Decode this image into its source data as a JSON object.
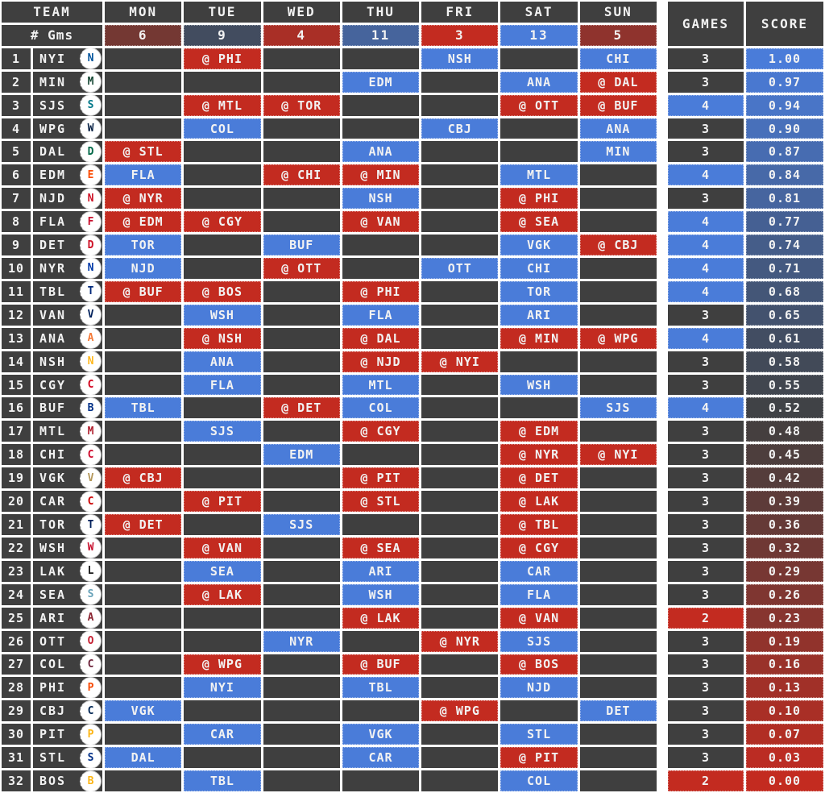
{
  "header": {
    "team_label": "TEAM",
    "gms_label": "# Gms",
    "games_label": "GAMES",
    "score_label": "SCORE",
    "days": [
      {
        "label": "MON",
        "count": 6,
        "count_color": "#743833"
      },
      {
        "label": "TUE",
        "count": 9,
        "count_color": "#424C5F"
      },
      {
        "label": "WED",
        "count": 4,
        "count_color": "#A92F26"
      },
      {
        "label": "THU",
        "count": 11,
        "count_color": "#46649C"
      },
      {
        "label": "FRI",
        "count": 3,
        "count_color": "#C32B20"
      },
      {
        "label": "SAT",
        "count": 13,
        "count_color": "#4A7CD9"
      },
      {
        "label": "SUN",
        "count": 5,
        "count_color": "#8F332D"
      }
    ]
  },
  "colors": {
    "home": "#4A7CD9",
    "away": "#C32B20",
    "cell_bg": "#3F3F3F",
    "text": "#F2F2F2",
    "grid": "#FFFFFF",
    "games_high": "#4A7CD9",
    "games_low": "#C32B20"
  },
  "rows": [
    {
      "rank": 1,
      "team": "NYI",
      "logo_color": "#00539b",
      "days": [
        null,
        {
          "opp": "PHI",
          "away": true
        },
        null,
        null,
        {
          "opp": "NSH",
          "away": false
        },
        null,
        {
          "opp": "CHI",
          "away": false
        }
      ],
      "games": 3,
      "games_color": null,
      "score": "1.00",
      "score_color": "#4A7CD9"
    },
    {
      "rank": 2,
      "team": "MIN",
      "logo_color": "#154734",
      "days": [
        null,
        null,
        null,
        {
          "opp": "EDM",
          "away": false
        },
        null,
        {
          "opp": "ANA",
          "away": false
        },
        {
          "opp": "DAL",
          "away": true
        }
      ],
      "games": 3,
      "games_color": null,
      "score": "0.97",
      "score_color": "#4978D0"
    },
    {
      "rank": 3,
      "team": "SJS",
      "logo_color": "#007889",
      "days": [
        null,
        {
          "opp": "MTL",
          "away": true
        },
        {
          "opp": "TOR",
          "away": true
        },
        null,
        null,
        {
          "opp": "OTT",
          "away": true
        },
        {
          "opp": "BUF",
          "away": true
        }
      ],
      "games": 4,
      "games_color": "#4A7CD9",
      "score": "0.94",
      "score_color": "#4975C7"
    },
    {
      "rank": 4,
      "team": "WPG",
      "logo_color": "#041e42",
      "days": [
        null,
        {
          "opp": "COL",
          "away": false
        },
        null,
        null,
        {
          "opp": "CBJ",
          "away": false
        },
        null,
        {
          "opp": "ANA",
          "away": false
        }
      ],
      "games": 3,
      "games_color": null,
      "score": "0.90",
      "score_color": "#4870BA"
    },
    {
      "rank": 5,
      "team": "DAL",
      "logo_color": "#006847",
      "days": [
        {
          "opp": "STL",
          "away": true
        },
        null,
        null,
        {
          "opp": "ANA",
          "away": false
        },
        null,
        null,
        {
          "opp": "MIN",
          "away": false
        }
      ],
      "games": 3,
      "games_color": null,
      "score": "0.87",
      "score_color": "#476CB1"
    },
    {
      "rank": 6,
      "team": "EDM",
      "logo_color": "#fc4c02",
      "days": [
        {
          "opp": "FLA",
          "away": false
        },
        null,
        {
          "opp": "CHI",
          "away": true
        },
        {
          "opp": "MIN",
          "away": true
        },
        null,
        {
          "opp": "MTL",
          "away": false
        },
        null
      ],
      "games": 4,
      "games_color": "#4A7CD9",
      "score": "0.84",
      "score_color": "#4769A8"
    },
    {
      "rank": 7,
      "team": "NJD",
      "logo_color": "#ce1126",
      "days": [
        {
          "opp": "NYR",
          "away": true
        },
        null,
        null,
        {
          "opp": "NSH",
          "away": false
        },
        null,
        {
          "opp": "PHI",
          "away": true
        },
        null
      ],
      "games": 3,
      "games_color": null,
      "score": "0.81",
      "score_color": "#46659F"
    },
    {
      "rank": 8,
      "team": "FLA",
      "logo_color": "#c8102e",
      "days": [
        {
          "opp": "EDM",
          "away": true
        },
        {
          "opp": "CGY",
          "away": true
        },
        null,
        {
          "opp": "VAN",
          "away": true
        },
        null,
        {
          "opp": "SEA",
          "away": true
        },
        null
      ],
      "games": 4,
      "games_color": "#4A7CD9",
      "score": "0.77",
      "score_color": "#456093"
    },
    {
      "rank": 9,
      "team": "DET",
      "logo_color": "#ce1126",
      "days": [
        {
          "opp": "TOR",
          "away": false
        },
        null,
        {
          "opp": "BUF",
          "away": false
        },
        null,
        null,
        {
          "opp": "VGK",
          "away": false
        },
        {
          "opp": "CBJ",
          "away": true
        }
      ],
      "games": 4,
      "games_color": "#4A7CD9",
      "score": "0.74",
      "score_color": "#455D89"
    },
    {
      "rank": 10,
      "team": "NYR",
      "logo_color": "#0038a8",
      "days": [
        {
          "opp": "NJD",
          "away": false
        },
        null,
        {
          "opp": "OTT",
          "away": true
        },
        null,
        {
          "opp": "OTT",
          "away": false
        },
        {
          "opp": "CHI",
          "away": false
        },
        null
      ],
      "games": 4,
      "games_color": "#4A7CD9",
      "score": "0.71",
      "score_color": "#445980"
    },
    {
      "rank": 11,
      "team": "TBL",
      "logo_color": "#00287a",
      "days": [
        {
          "opp": "BUF",
          "away": true
        },
        {
          "opp": "BOS",
          "away": true
        },
        null,
        {
          "opp": "PHI",
          "away": true
        },
        null,
        {
          "opp": "TOR",
          "away": false
        },
        null
      ],
      "games": 4,
      "games_color": "#4A7CD9",
      "score": "0.68",
      "score_color": "#445677"
    },
    {
      "rank": 12,
      "team": "VAN",
      "logo_color": "#00205b",
      "days": [
        null,
        {
          "opp": "WSH",
          "away": false
        },
        null,
        {
          "opp": "FLA",
          "away": false
        },
        null,
        {
          "opp": "ARI",
          "away": false
        },
        null
      ],
      "games": 3,
      "games_color": null,
      "score": "0.65",
      "score_color": "#43526E"
    },
    {
      "rank": 13,
      "team": "ANA",
      "logo_color": "#f47a38",
      "days": [
        null,
        {
          "opp": "NSH",
          "away": true
        },
        null,
        {
          "opp": "DAL",
          "away": true
        },
        null,
        {
          "opp": "MIN",
          "away": true
        },
        {
          "opp": "WPG",
          "away": true
        }
      ],
      "games": 4,
      "games_color": "#4A7CD9",
      "score": "0.61",
      "score_color": "#424D62"
    },
    {
      "rank": 14,
      "team": "NSH",
      "logo_color": "#ffb81c",
      "days": [
        null,
        {
          "opp": "ANA",
          "away": false
        },
        null,
        {
          "opp": "NJD",
          "away": true
        },
        {
          "opp": "NYI",
          "away": true
        },
        null,
        null
      ],
      "games": 3,
      "games_color": null,
      "score": "0.58",
      "score_color": "#424A58"
    },
    {
      "rank": 15,
      "team": "CGY",
      "logo_color": "#d2001c",
      "days": [
        null,
        {
          "opp": "FLA",
          "away": false
        },
        null,
        {
          "opp": "MTL",
          "away": false
        },
        null,
        {
          "opp": "WSH",
          "away": false
        },
        null
      ],
      "games": 3,
      "games_color": null,
      "score": "0.55",
      "score_color": "#41464F"
    },
    {
      "rank": 16,
      "team": "BUF",
      "logo_color": "#003087",
      "days": [
        {
          "opp": "TBL",
          "away": false
        },
        null,
        {
          "opp": "DET",
          "away": true
        },
        {
          "opp": "COL",
          "away": false
        },
        null,
        null,
        {
          "opp": "SJS",
          "away": false
        }
      ],
      "games": 4,
      "games_color": "#4A7CD9",
      "score": "0.52",
      "score_color": "#404246"
    },
    {
      "rank": 17,
      "team": "MTL",
      "logo_color": "#af1e2d",
      "days": [
        null,
        {
          "opp": "SJS",
          "away": false
        },
        null,
        {
          "opp": "CGY",
          "away": true
        },
        null,
        {
          "opp": "EDM",
          "away": true
        },
        null
      ],
      "games": 3,
      "games_color": null,
      "score": "0.48",
      "score_color": "#453F3F"
    },
    {
      "rank": 18,
      "team": "CHI",
      "logo_color": "#cf0a2c",
      "days": [
        null,
        null,
        {
          "opp": "EDM",
          "away": false
        },
        null,
        null,
        {
          "opp": "NYR",
          "away": true
        },
        {
          "opp": "NYI",
          "away": true
        }
      ],
      "games": 3,
      "games_color": null,
      "score": "0.45",
      "score_color": "#4D3E3D"
    },
    {
      "rank": 19,
      "team": "VGK",
      "logo_color": "#b4975a",
      "days": [
        {
          "opp": "CBJ",
          "away": true
        },
        null,
        null,
        {
          "opp": "PIT",
          "away": true
        },
        null,
        {
          "opp": "DET",
          "away": true
        },
        null
      ],
      "games": 3,
      "games_color": null,
      "score": "0.42",
      "score_color": "#553D3B"
    },
    {
      "rank": 20,
      "team": "CAR",
      "logo_color": "#cc0000",
      "days": [
        null,
        {
          "opp": "PIT",
          "away": true
        },
        null,
        {
          "opp": "STL",
          "away": true
        },
        null,
        {
          "opp": "LAK",
          "away": true
        },
        null
      ],
      "games": 3,
      "games_color": null,
      "score": "0.39",
      "score_color": "#5D3B39"
    },
    {
      "rank": 21,
      "team": "TOR",
      "logo_color": "#00205b",
      "days": [
        {
          "opp": "DET",
          "away": true
        },
        null,
        {
          "opp": "SJS",
          "away": false
        },
        null,
        null,
        {
          "opp": "TBL",
          "away": true
        },
        null
      ],
      "games": 3,
      "games_color": null,
      "score": "0.36",
      "score_color": "#653A37"
    },
    {
      "rank": 22,
      "team": "WSH",
      "logo_color": "#c8102e",
      "days": [
        null,
        {
          "opp": "VAN",
          "away": true
        },
        null,
        {
          "opp": "SEA",
          "away": true
        },
        null,
        {
          "opp": "CGY",
          "away": true
        },
        null
      ],
      "games": 3,
      "games_color": null,
      "score": "0.32",
      "score_color": "#6F3834"
    },
    {
      "rank": 23,
      "team": "LAK",
      "logo_color": "#1a1a1a",
      "days": [
        null,
        {
          "opp": "SEA",
          "away": false
        },
        null,
        {
          "opp": "ARI",
          "away": false
        },
        null,
        {
          "opp": "CAR",
          "away": false
        },
        null
      ],
      "games": 3,
      "games_color": null,
      "score": "0.29",
      "score_color": "#773733"
    },
    {
      "rank": 24,
      "team": "SEA",
      "logo_color": "#68a2b9",
      "days": [
        null,
        {
          "opp": "LAK",
          "away": true
        },
        null,
        {
          "opp": "WSH",
          "away": false
        },
        null,
        {
          "opp": "FLA",
          "away": false
        },
        null
      ],
      "games": 3,
      "games_color": null,
      "score": "0.26",
      "score_color": "#7F3631"
    },
    {
      "rank": 25,
      "team": "ARI",
      "logo_color": "#8c2633",
      "days": [
        null,
        null,
        null,
        {
          "opp": "LAK",
          "away": true
        },
        null,
        {
          "opp": "VAN",
          "away": true
        },
        null
      ],
      "games": 2,
      "games_color": "#C32B20",
      "score": "0.23",
      "score_color": "#87352F"
    },
    {
      "rank": 26,
      "team": "OTT",
      "logo_color": "#c52032",
      "days": [
        null,
        null,
        {
          "opp": "NYR",
          "away": false
        },
        null,
        {
          "opp": "NYR",
          "away": true
        },
        {
          "opp": "SJS",
          "away": false
        },
        null
      ],
      "games": 3,
      "games_color": null,
      "score": "0.19",
      "score_color": "#91332C"
    },
    {
      "rank": 27,
      "team": "COL",
      "logo_color": "#6f263d",
      "days": [
        null,
        {
          "opp": "WPG",
          "away": true
        },
        null,
        {
          "opp": "BUF",
          "away": true
        },
        null,
        {
          "opp": "BOS",
          "away": true
        },
        null
      ],
      "games": 3,
      "games_color": null,
      "score": "0.16",
      "score_color": "#99322A"
    },
    {
      "rank": 28,
      "team": "PHI",
      "logo_color": "#f74902",
      "days": [
        null,
        {
          "opp": "NYI",
          "away": false
        },
        null,
        {
          "opp": "TBL",
          "away": false
        },
        null,
        {
          "opp": "NJD",
          "away": false
        },
        null
      ],
      "games": 3,
      "games_color": null,
      "score": "0.13",
      "score_color": "#A13028"
    },
    {
      "rank": 29,
      "team": "CBJ",
      "logo_color": "#002654",
      "days": [
        {
          "opp": "VGK",
          "away": false
        },
        null,
        null,
        null,
        {
          "opp": "WPG",
          "away": true
        },
        null,
        {
          "opp": "DET",
          "away": false
        }
      ],
      "games": 3,
      "games_color": null,
      "score": "0.10",
      "score_color": "#A92F26"
    },
    {
      "rank": 30,
      "team": "PIT",
      "logo_color": "#fcb514",
      "days": [
        null,
        {
          "opp": "CAR",
          "away": false
        },
        null,
        {
          "opp": "VGK",
          "away": false
        },
        null,
        {
          "opp": "STL",
          "away": false
        },
        null
      ],
      "games": 3,
      "games_color": null,
      "score": "0.07",
      "score_color": "#B12E24"
    },
    {
      "rank": 31,
      "team": "STL",
      "logo_color": "#002f87",
      "days": [
        {
          "opp": "DAL",
          "away": false
        },
        null,
        null,
        {
          "opp": "CAR",
          "away": false
        },
        null,
        {
          "opp": "PIT",
          "away": true
        },
        null
      ],
      "games": 3,
      "games_color": null,
      "score": "0.03",
      "score_color": "#BB2C23"
    },
    {
      "rank": 32,
      "team": "BOS",
      "logo_color": "#fcb514",
      "days": [
        null,
        {
          "opp": "TBL",
          "away": false
        },
        null,
        null,
        null,
        {
          "opp": "COL",
          "away": false
        },
        null
      ],
      "games": 2,
      "games_color": "#C32B20",
      "score": "0.00",
      "score_color": "#C32B20"
    }
  ]
}
